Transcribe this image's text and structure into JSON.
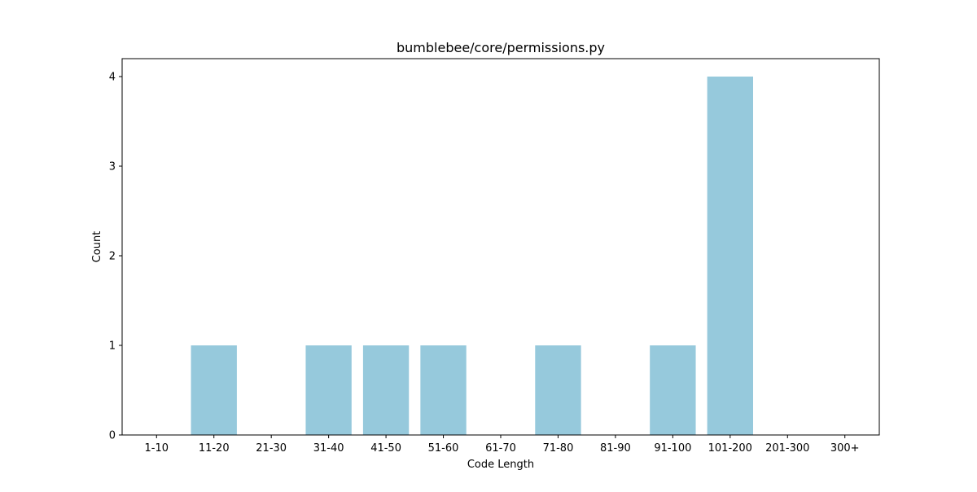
{
  "chart_data": {
    "type": "bar",
    "title": "bumblebee/core/permissions.py",
    "xlabel": "Code Length",
    "ylabel": "Count",
    "categories": [
      "1-10",
      "11-20",
      "21-30",
      "31-40",
      "41-50",
      "51-60",
      "61-70",
      "71-80",
      "81-90",
      "91-100",
      "101-200",
      "201-300",
      "300+"
    ],
    "values": [
      0,
      1,
      0,
      1,
      1,
      1,
      0,
      1,
      0,
      1,
      4,
      0,
      0
    ],
    "ylim": [
      0,
      4.2
    ],
    "yticks": [
      0,
      1,
      2,
      3,
      4
    ],
    "grid": false,
    "legend": "none",
    "bar_color": "#96c9dc"
  }
}
